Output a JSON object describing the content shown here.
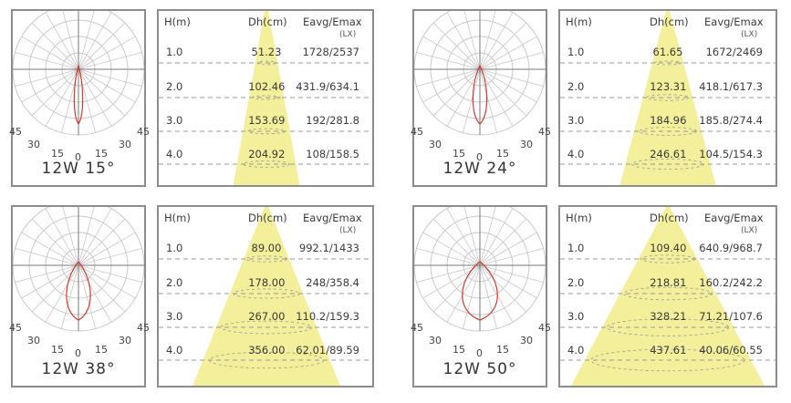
{
  "colors": {
    "frame": "#8c8c8c",
    "grid": "#c8c8c8",
    "curve": "#d33a2c",
    "beam": "#f3ef9a",
    "dash": "#9a9a9a"
  },
  "headers": {
    "h": "H(m)",
    "dh": "Dh(cm)",
    "eavg": "Eavg/Emax",
    "unit": "(LX)"
  },
  "angle_labels": {
    "a45": "45",
    "a30": "30",
    "a15": "15",
    "a0": "0"
  },
  "panels": [
    {
      "caption": "12W 15°",
      "beam_deg": 15,
      "rows": [
        {
          "h": "1.0",
          "dh": "51.23",
          "e": "1728/2537"
        },
        {
          "h": "2.0",
          "dh": "102.46",
          "e": "431.9/634.1"
        },
        {
          "h": "3.0",
          "dh": "153.69",
          "e": "192/281.8"
        },
        {
          "h": "4.0",
          "dh": "204.92",
          "e": "108/158.5"
        }
      ]
    },
    {
      "caption": "12W 24°",
      "beam_deg": 24,
      "rows": [
        {
          "h": "1.0",
          "dh": "61.65",
          "e": "1672/2469"
        },
        {
          "h": "2.0",
          "dh": "123.31",
          "e": "418.1/617.3"
        },
        {
          "h": "3.0",
          "dh": "184.96",
          "e": "185.8/274.4"
        },
        {
          "h": "4.0",
          "dh": "246.61",
          "e": "104.5/154.3"
        }
      ]
    },
    {
      "caption": "12W 38°",
      "beam_deg": 38,
      "rows": [
        {
          "h": "1.0",
          "dh": "89.00",
          "e": "992.1/1433"
        },
        {
          "h": "2.0",
          "dh": "178.00",
          "e": "248/358.4"
        },
        {
          "h": "3.0",
          "dh": "267.00",
          "e": "110.2/159.3"
        },
        {
          "h": "4.0",
          "dh": "356.00",
          "e": "62.01/89.59"
        }
      ]
    },
    {
      "caption": "12W 50°",
      "beam_deg": 50,
      "rows": [
        {
          "h": "1.0",
          "dh": "109.40",
          "e": "640.9/968.7"
        },
        {
          "h": "2.0",
          "dh": "218.81",
          "e": "160.2/242.2"
        },
        {
          "h": "3.0",
          "dh": "328.21",
          "e": "71.21/107.6"
        },
        {
          "h": "4.0",
          "dh": "437.61",
          "e": "40.06/60.55"
        }
      ]
    }
  ]
}
